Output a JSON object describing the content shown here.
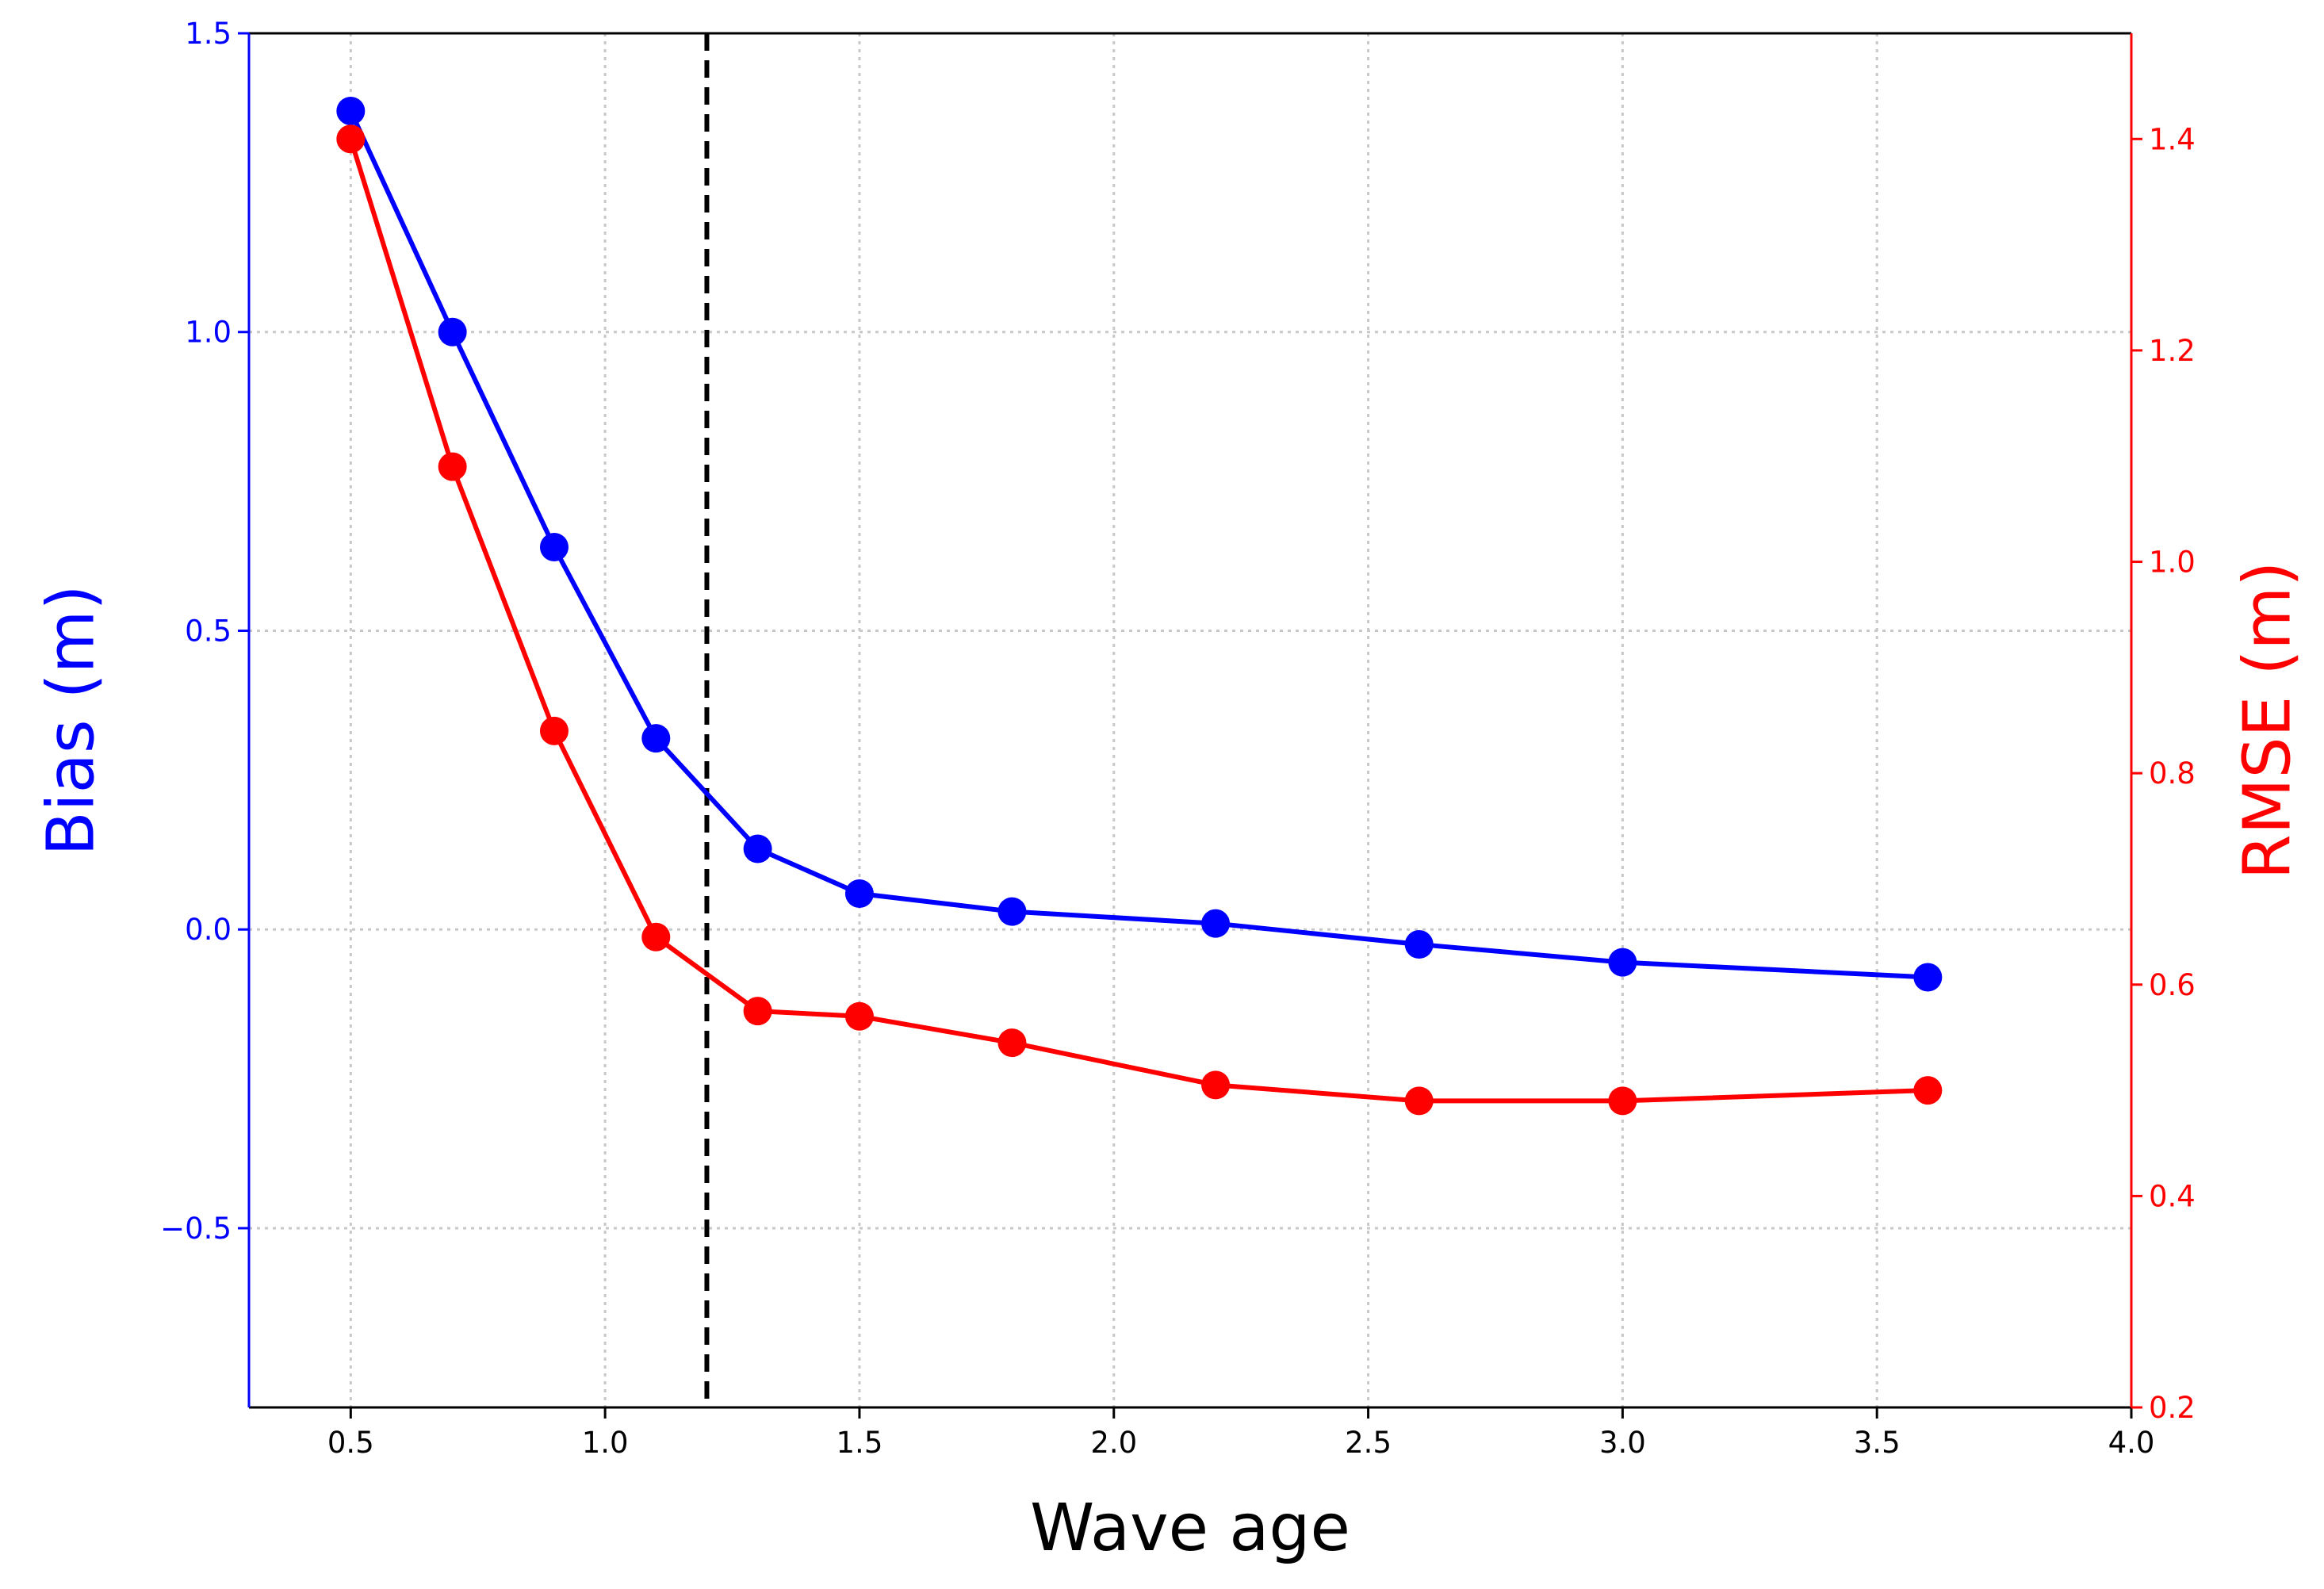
{
  "chart_data": {
    "type": "line",
    "xlabel": "Wave age",
    "xlim": [
      0.3,
      4.0
    ],
    "xticks": [
      0.5,
      1.0,
      1.5,
      2.0,
      2.5,
      3.0,
      3.5,
      4.0
    ],
    "xtick_labels": [
      "0.5",
      "1.0",
      "1.5",
      "2.0",
      "2.5",
      "3.0",
      "3.5",
      "4.0"
    ],
    "grid": true,
    "vline": {
      "x": 1.2,
      "style": "dashed",
      "color": "#000000"
    },
    "left_axis": {
      "label": "Bias (m)",
      "color": "#0000ff",
      "ylim": [
        -0.8,
        1.5
      ],
      "ticks": [
        -0.5,
        0.0,
        0.5,
        1.0,
        1.5
      ],
      "tick_labels": [
        "−0.5",
        "0.0",
        "0.5",
        "1.0",
        "1.5"
      ]
    },
    "right_axis": {
      "label": "RMSE (m)",
      "color": "#ff0000",
      "ylim": [
        0.2,
        1.5
      ],
      "ticks": [
        0.2,
        0.4,
        0.6,
        0.8,
        1.0,
        1.2,
        1.4
      ],
      "tick_labels": [
        "0.2",
        "0.4",
        "0.6",
        "0.8",
        "1.0",
        "1.2",
        "1.4"
      ]
    },
    "series": [
      {
        "name": "Bias",
        "axis": "left",
        "color": "#0000ff",
        "x": [
          0.5,
          0.7,
          0.9,
          1.1,
          1.3,
          1.5,
          1.8,
          2.2,
          2.6,
          3.0,
          3.6
        ],
        "values": [
          1.37,
          1.0,
          0.64,
          0.32,
          0.135,
          0.06,
          0.03,
          0.01,
          -0.025,
          -0.055,
          -0.08
        ]
      },
      {
        "name": "RMSE",
        "axis": "right",
        "color": "#ff0000",
        "x": [
          0.5,
          0.7,
          0.9,
          1.1,
          1.3,
          1.5,
          1.8,
          2.2,
          2.6,
          3.0,
          3.6
        ],
        "values": [
          1.4,
          1.09,
          0.84,
          0.645,
          0.575,
          0.57,
          0.545,
          0.505,
          0.49,
          0.49,
          0.5
        ]
      }
    ]
  }
}
